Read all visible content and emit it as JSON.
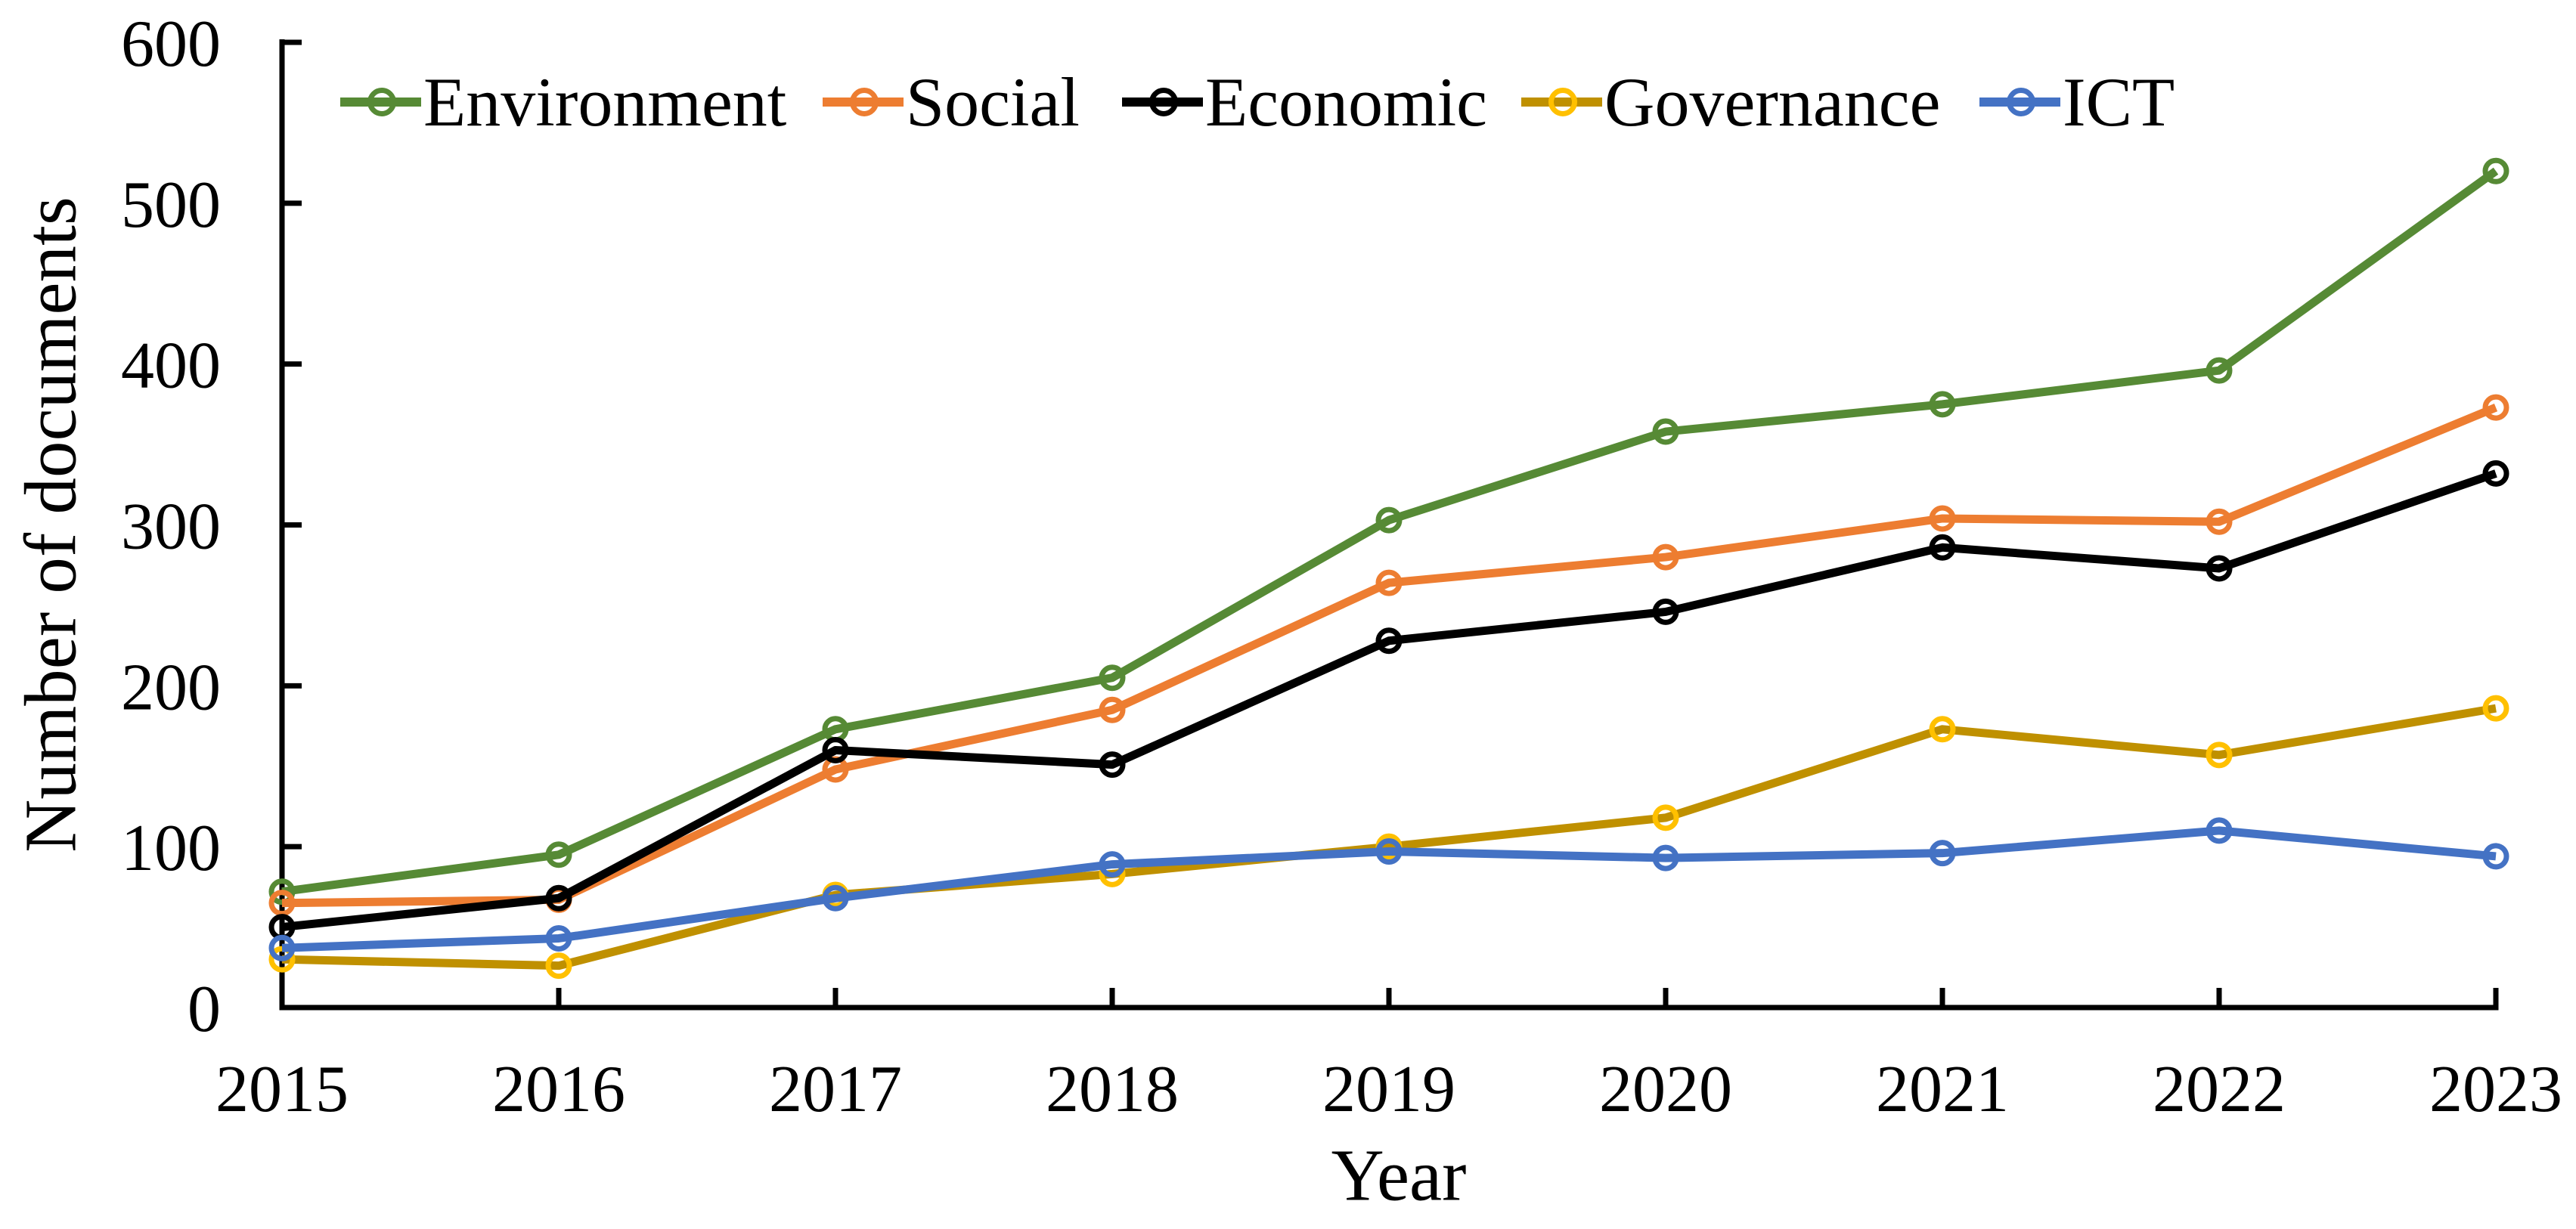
{
  "chart_data": {
    "type": "line",
    "title": "",
    "xlabel": "Year",
    "ylabel": "Number of documents",
    "categories": [
      "2015",
      "2016",
      "2017",
      "2018",
      "2019",
      "2020",
      "2021",
      "2022",
      "2023"
    ],
    "y_ticks": [
      "0",
      "100",
      "200",
      "300",
      "400",
      "500",
      "600"
    ],
    "ylim": [
      0,
      600
    ],
    "grid": false,
    "legend_position": "top",
    "axis_color": "#000000",
    "marker_style": "open-circle",
    "series": [
      {
        "name": "Environment",
        "color": "#568A35",
        "marker_color": "#568A35",
        "values": [
          72,
          95,
          173,
          205,
          303,
          358,
          375,
          396,
          520
        ]
      },
      {
        "name": "Social",
        "color": "#ED7D31",
        "marker_color": "#ED7D31",
        "values": [
          65,
          67,
          148,
          185,
          264,
          280,
          304,
          302,
          373
        ]
      },
      {
        "name": "Economic",
        "color": "#000000",
        "marker_color": "#000000",
        "values": [
          50,
          68,
          160,
          151,
          228,
          246,
          286,
          273,
          332
        ]
      },
      {
        "name": "Governance",
        "color": "#BF9000",
        "marker_color": "#FFC000",
        "values": [
          30,
          26,
          70,
          83,
          100,
          118,
          173,
          157,
          186
        ]
      },
      {
        "name": "ICT",
        "color": "#4472C4",
        "marker_color": "#4472C4",
        "values": [
          37,
          43,
          68,
          89,
          97,
          93,
          96,
          110,
          94
        ]
      }
    ]
  }
}
